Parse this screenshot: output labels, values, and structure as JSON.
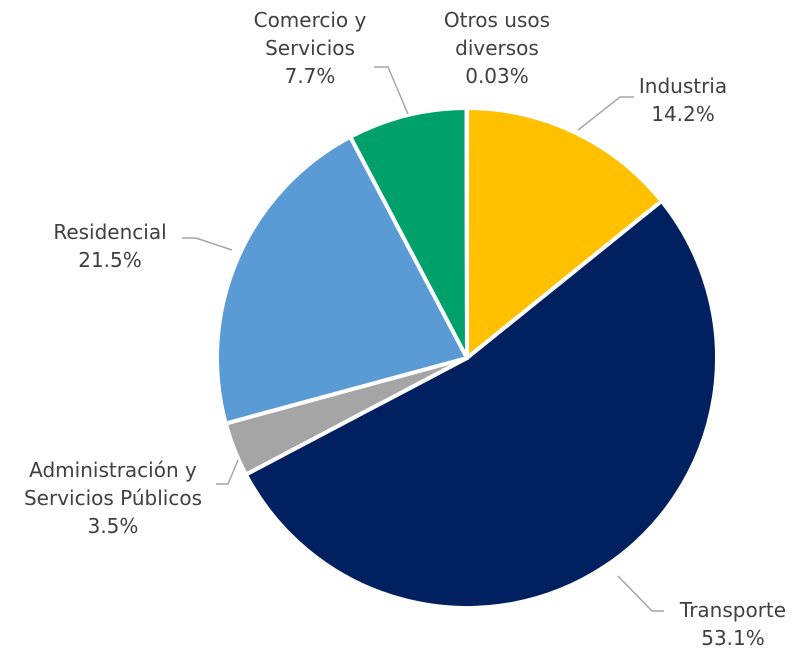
{
  "chart_data": {
    "type": "pie",
    "categories": [
      "Industria",
      "Transporte",
      "Administración y Servicios Públicos",
      "Residencial",
      "Comercio y Servicios",
      "Otros usos diversos"
    ],
    "values": [
      14.2,
      53.1,
      3.5,
      21.5,
      7.7,
      0.03
    ],
    "value_labels": [
      "14.2%",
      "53.1%",
      "3.5%",
      "21.5%",
      "7.7%",
      "0.03%"
    ],
    "colors": [
      "#ffc000",
      "#002060",
      "#a5a5a5",
      "#5b9bd5",
      "#00a06a",
      "#7030a0"
    ]
  }
}
